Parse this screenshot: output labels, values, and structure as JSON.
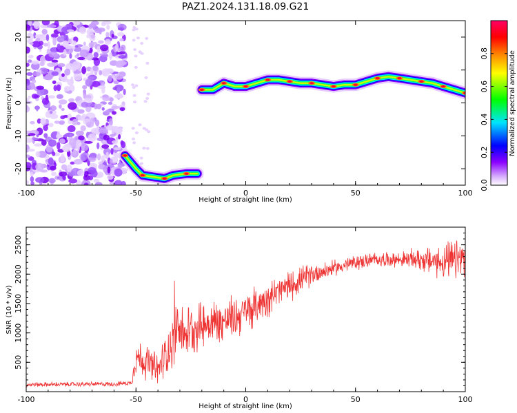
{
  "figure": {
    "title": "PAZ1.2024.131.18.09.G21"
  },
  "chart_data": [
    {
      "type": "heatmap",
      "title": "PAZ1.2024.131.18.09.G21",
      "xlabel": "Height of straight line (km)",
      "ylabel": "Frequency (Hz)",
      "xlim": [
        -100,
        100
      ],
      "ylim": [
        -25,
        25
      ],
      "x_ticks": [
        -100,
        -50,
        0,
        50,
        100
      ],
      "y_ticks": [
        -20,
        -10,
        0,
        10,
        20
      ],
      "colorbar": {
        "label": "Normalized spectral amplitude",
        "range": [
          0,
          1
        ],
        "ticks": [
          "0.0",
          "0.2",
          "0.4",
          "0.6",
          "0.8"
        ],
        "tick_values": [
          0.0,
          0.2,
          0.4,
          0.6,
          0.8
        ],
        "colormap": [
          "#ffffff",
          "#8a00ff",
          "#0000ff",
          "#00e5ff",
          "#00ff00",
          "#ffff00",
          "#ff8000",
          "#ff0000",
          "#ff0066"
        ]
      },
      "signal_track": [
        {
          "x": -55,
          "y": -16
        },
        {
          "x": -50,
          "y": -20
        },
        {
          "x": -47,
          "y": -22
        },
        {
          "x": -42,
          "y": -22.5
        },
        {
          "x": -37,
          "y": -23
        },
        {
          "x": -33,
          "y": -22
        },
        {
          "x": -27,
          "y": -21.5
        },
        {
          "x": -22,
          "y": -21.5
        },
        {
          "x": -20,
          "y": 4
        },
        {
          "x": -15,
          "y": 4
        },
        {
          "x": -10,
          "y": 6
        },
        {
          "x": -5,
          "y": 5
        },
        {
          "x": 0,
          "y": 5
        },
        {
          "x": 5,
          "y": 6
        },
        {
          "x": 10,
          "y": 7
        },
        {
          "x": 15,
          "y": 7
        },
        {
          "x": 20,
          "y": 6.5
        },
        {
          "x": 25,
          "y": 6
        },
        {
          "x": 30,
          "y": 6
        },
        {
          "x": 35,
          "y": 5.5
        },
        {
          "x": 40,
          "y": 5
        },
        {
          "x": 45,
          "y": 5.5
        },
        {
          "x": 50,
          "y": 5.5
        },
        {
          "x": 55,
          "y": 6.5
        },
        {
          "x": 60,
          "y": 7.5
        },
        {
          "x": 65,
          "y": 8
        },
        {
          "x": 70,
          "y": 7.5
        },
        {
          "x": 75,
          "y": 7
        },
        {
          "x": 80,
          "y": 6.5
        },
        {
          "x": 85,
          "y": 6
        },
        {
          "x": 90,
          "y": 5
        },
        {
          "x": 95,
          "y": 4
        },
        {
          "x": 100,
          "y": 3
        }
      ],
      "noise_region": {
        "x": [
          -100,
          -55
        ],
        "y": [
          -25,
          25
        ]
      }
    },
    {
      "type": "line",
      "xlabel": "Height of straight line (km)",
      "ylabel": "SNR (10 * v/v)",
      "xlim": [
        -100,
        100
      ],
      "ylim": [
        0,
        2800
      ],
      "x_ticks": [
        -100,
        -50,
        0,
        50,
        100
      ],
      "y_ticks": [
        500,
        1000,
        1500,
        2000,
        2500
      ],
      "color": "#ee3333",
      "trend": [
        {
          "x": -100,
          "y": 120
        },
        {
          "x": -60,
          "y": 130
        },
        {
          "x": -52,
          "y": 150
        },
        {
          "x": -50,
          "y": 600
        },
        {
          "x": -45,
          "y": 500
        },
        {
          "x": -40,
          "y": 350
        },
        {
          "x": -35,
          "y": 750
        },
        {
          "x": -30,
          "y": 1000
        },
        {
          "x": -25,
          "y": 1050
        },
        {
          "x": -20,
          "y": 1150
        },
        {
          "x": -10,
          "y": 1200
        },
        {
          "x": 0,
          "y": 1350
        },
        {
          "x": 10,
          "y": 1600
        },
        {
          "x": 20,
          "y": 1800
        },
        {
          "x": 30,
          "y": 2000
        },
        {
          "x": 40,
          "y": 2100
        },
        {
          "x": 50,
          "y": 2200
        },
        {
          "x": 60,
          "y": 2250
        },
        {
          "x": 70,
          "y": 2250
        },
        {
          "x": 80,
          "y": 2250
        },
        {
          "x": 90,
          "y": 2200
        },
        {
          "x": 100,
          "y": 2250
        }
      ],
      "noise_amplitude": [
        {
          "x": -100,
          "y": 40
        },
        {
          "x": -52,
          "y": 40
        },
        {
          "x": -50,
          "y": 300
        },
        {
          "x": -40,
          "y": 300
        },
        {
          "x": -32,
          "y": 450
        },
        {
          "x": -20,
          "y": 400
        },
        {
          "x": 0,
          "y": 350
        },
        {
          "x": 20,
          "y": 250
        },
        {
          "x": 40,
          "y": 130
        },
        {
          "x": 70,
          "y": 120
        },
        {
          "x": 85,
          "y": 250
        },
        {
          "x": 100,
          "y": 400
        }
      ]
    }
  ]
}
